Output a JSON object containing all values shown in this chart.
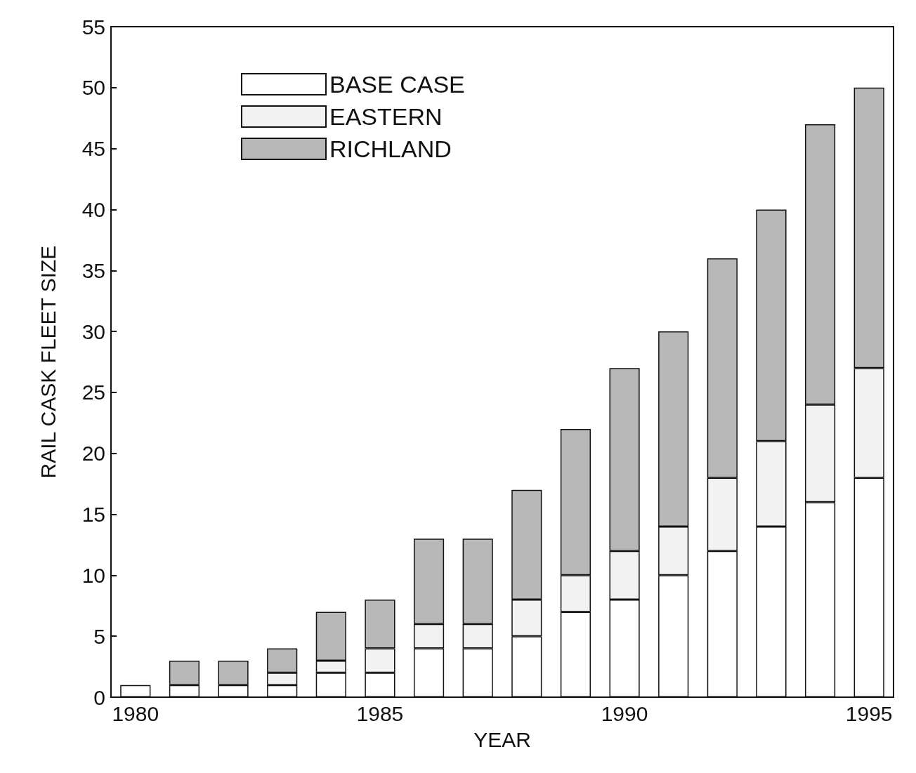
{
  "chart_data": {
    "type": "bar",
    "stacked": true,
    "xlabel": "YEAR",
    "ylabel": "RAIL CASK FLEET SIZE",
    "categories": [
      "1980",
      null,
      null,
      null,
      null,
      "1985",
      null,
      null,
      null,
      null,
      "1990",
      null,
      null,
      null,
      null,
      "1995"
    ],
    "series": [
      {
        "name": "BASE CASE",
        "color": "#ffffff",
        "values": [
          1,
          1,
          1,
          1,
          2,
          2,
          4,
          4,
          5,
          7,
          8,
          10,
          12,
          14,
          16,
          18
        ]
      },
      {
        "name": "EASTERN",
        "color": "#f2f2f2",
        "values": [
          0,
          0,
          0,
          1,
          1,
          2,
          2,
          2,
          3,
          3,
          4,
          4,
          6,
          7,
          8,
          9
        ]
      },
      {
        "name": "RICHLAND",
        "color": "#b8b8b8",
        "values": [
          0,
          2,
          2,
          2,
          4,
          4,
          7,
          7,
          9,
          12,
          15,
          16,
          18,
          19,
          23,
          23
        ]
      }
    ],
    "ylim": [
      0,
      55
    ],
    "yticks": [
      0,
      5,
      10,
      15,
      20,
      25,
      30,
      35,
      40,
      45,
      50,
      55
    ],
    "grid": false,
    "legend": "top left"
  }
}
